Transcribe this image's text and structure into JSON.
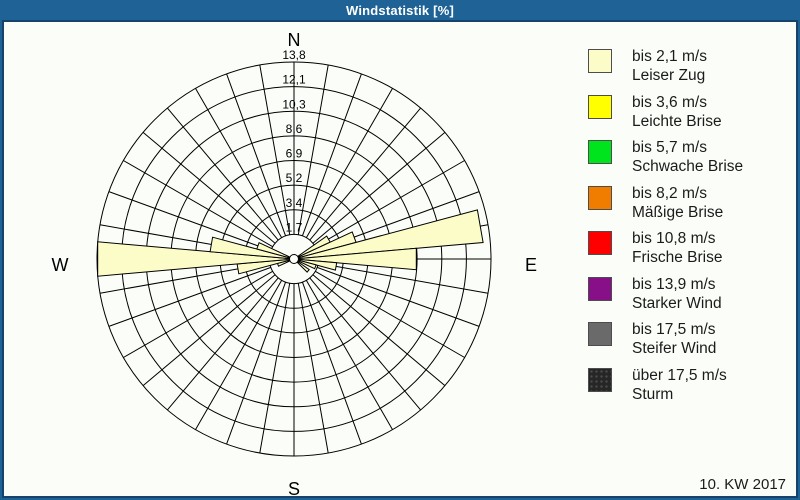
{
  "window": {
    "title": "Windstatistik [%]"
  },
  "footer": {
    "label": "10. KW 2017"
  },
  "colors": {
    "titlebar_bg": "#1E6296",
    "frame_border": "#16436C",
    "chart_bg": "#FBFEF8",
    "grid_line": "#000000",
    "petal_fill": "#FCFCC8",
    "text": "#1b1b1b"
  },
  "chart_data": {
    "type": "windrose_polar_bar",
    "title": "Windstatistik [%]",
    "units": "%",
    "sector_width_deg": 10,
    "ring_max": 13.8,
    "ring_labels": [
      "1,7",
      "3,4",
      "5,2",
      "6,9",
      "8,6",
      "10,3",
      "12,1",
      "13,8"
    ],
    "compass_labels": {
      "n": "N",
      "e": "E",
      "s": "S",
      "w": "W"
    },
    "petal_color": "#FCFCC8",
    "petals": [
      {
        "direction_deg": 60,
        "value_pct": 2.8
      },
      {
        "direction_deg": 70,
        "value_pct": 4.5
      },
      {
        "direction_deg": 80,
        "value_pct": 13.3
      },
      {
        "direction_deg": 90,
        "value_pct": 8.6
      },
      {
        "direction_deg": 100,
        "value_pct": 3.0
      },
      {
        "direction_deg": 110,
        "value_pct": 1.6
      },
      {
        "direction_deg": 130,
        "value_pct": 1.3
      },
      {
        "direction_deg": 250,
        "value_pct": 1.2
      },
      {
        "direction_deg": 260,
        "value_pct": 4.0
      },
      {
        "direction_deg": 270,
        "value_pct": 13.8
      },
      {
        "direction_deg": 280,
        "value_pct": 5.9
      },
      {
        "direction_deg": 290,
        "value_pct": 2.7
      }
    ],
    "legend": [
      {
        "color": "#FCFCC8",
        "speed": "bis 2,1 m/s",
        "name": "Leiser Zug",
        "pattern": "solid"
      },
      {
        "color": "#FFFF00",
        "speed": "bis 3,6 m/s",
        "name": "Leichte Brise",
        "pattern": "solid"
      },
      {
        "color": "#00E41E",
        "speed": "bis 5,7 m/s",
        "name": "Schwache Brise",
        "pattern": "solid"
      },
      {
        "color": "#F07D00",
        "speed": "bis 8,2 m/s",
        "name": "Mäßige Brise",
        "pattern": "solid"
      },
      {
        "color": "#FF0000",
        "speed": "bis 10,8 m/s",
        "name": "Frische Brise",
        "pattern": "solid"
      },
      {
        "color": "#870F87",
        "speed": "bis 13,9 m/s",
        "name": "Starker Wind",
        "pattern": "solid"
      },
      {
        "color": "#6A6A6A",
        "speed": "bis 17,5 m/s",
        "name": "Steifer Wind",
        "pattern": "solid"
      },
      {
        "color": "#262626",
        "speed": "über 17,5 m/s",
        "name": "Sturm",
        "pattern": "speckled"
      }
    ]
  }
}
